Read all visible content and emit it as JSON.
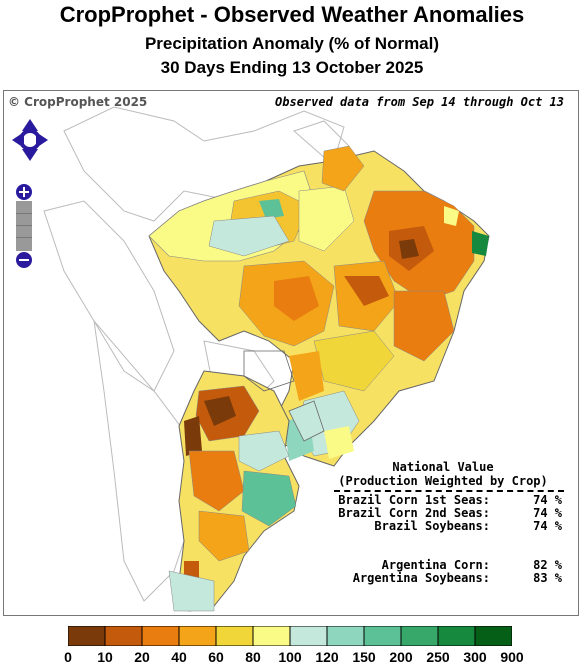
{
  "header": {
    "title": "CropProphet - Observed Weather Anomalies",
    "subtitle": "Precipitation Anomaly (% of Normal)",
    "period": "30 Days Ending 13 October 2025"
  },
  "map": {
    "copyright": "© CropProphet 2025",
    "observed_note": "Observed data from Sep 14 through Oct 13",
    "controls": {
      "pan": "pan-control-icon",
      "zoom_in": "zoom-in-icon",
      "zoom_out": "zoom-out-icon",
      "zoom_slider": "zoom-slider"
    },
    "national_value": {
      "heading_line1": "National Value",
      "heading_line2": "(Production Weighted by Crop)",
      "rows": [
        {
          "label": "Brazil Corn 1st Seas:",
          "value": "74 %"
        },
        {
          "label": "Brazil Corn 2nd Seas:",
          "value": "74 %"
        },
        {
          "label": "Brazil Soybeans:",
          "value": "74 %"
        },
        {
          "label": "",
          "value": ""
        },
        {
          "label": "Argentina Corn:",
          "value": "82 %"
        },
        {
          "label": "Argentina Soybeans:",
          "value": "83 %"
        }
      ]
    }
  },
  "legend": {
    "ticks": [
      "0",
      "10",
      "20",
      "40",
      "60",
      "80",
      "100",
      "120",
      "150",
      "200",
      "250",
      "300",
      "900"
    ],
    "colors": [
      "#7a3a0a",
      "#c45a0c",
      "#e97d10",
      "#f4a419",
      "#f1d63a",
      "#fafa86",
      "#c4e8dc",
      "#8fd6be",
      "#5cc196",
      "#37a86a",
      "#17893e",
      "#065f16"
    ]
  },
  "colors": {
    "outline": "#555555",
    "background": "#ffffff",
    "nav_control": "#2a1b9e"
  }
}
